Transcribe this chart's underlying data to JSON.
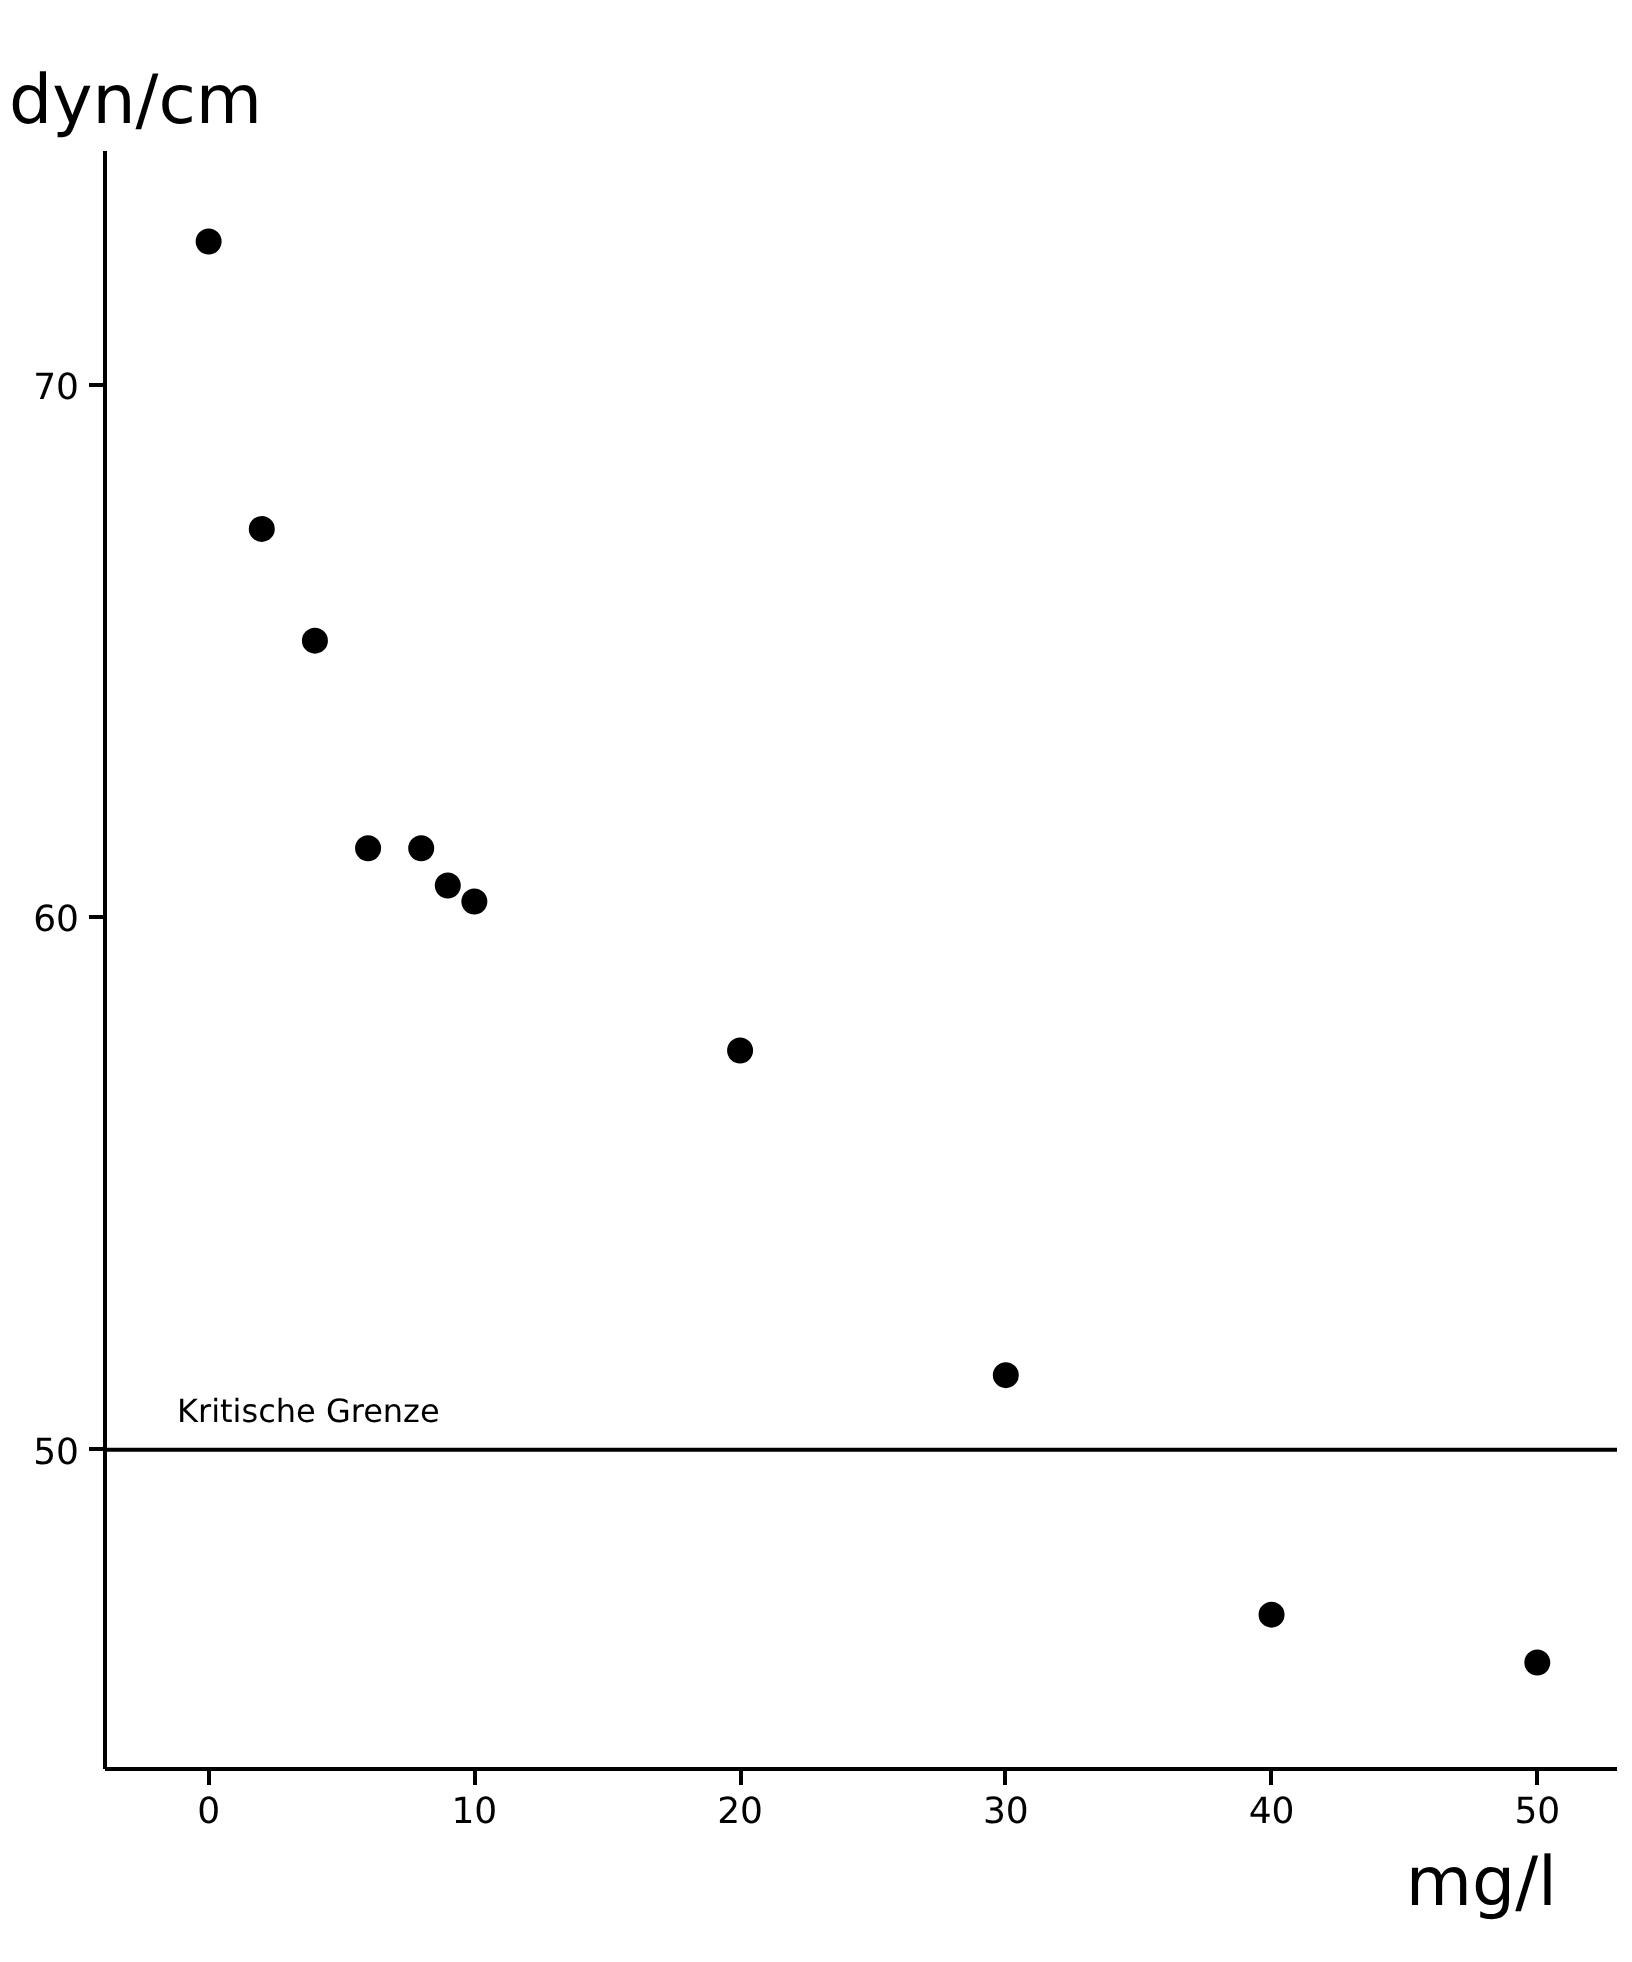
{
  "chart_data": {
    "type": "scatter",
    "xlabel": "mg/l",
    "ylabel": "dyn/cm",
    "x": [
      0,
      2,
      4,
      6,
      8,
      9,
      10,
      20,
      30,
      40,
      50
    ],
    "values": [
      72.7,
      67.3,
      65.2,
      61.3,
      61.3,
      60.6,
      60.3,
      57.5,
      51.4,
      46.9,
      46.0
    ],
    "color": "#000000",
    "marker": "circle",
    "grid": false,
    "xlim": [
      -3.9,
      53
    ],
    "ylim": [
      44.0,
      74.4
    ],
    "xticks": [
      0,
      10,
      20,
      30,
      40,
      50
    ],
    "yticks": [
      50,
      60,
      70
    ],
    "ref_lines": [
      {
        "axis": "y",
        "value": 50,
        "label": "Kritische Grenze",
        "color": "#000000"
      }
    ]
  }
}
